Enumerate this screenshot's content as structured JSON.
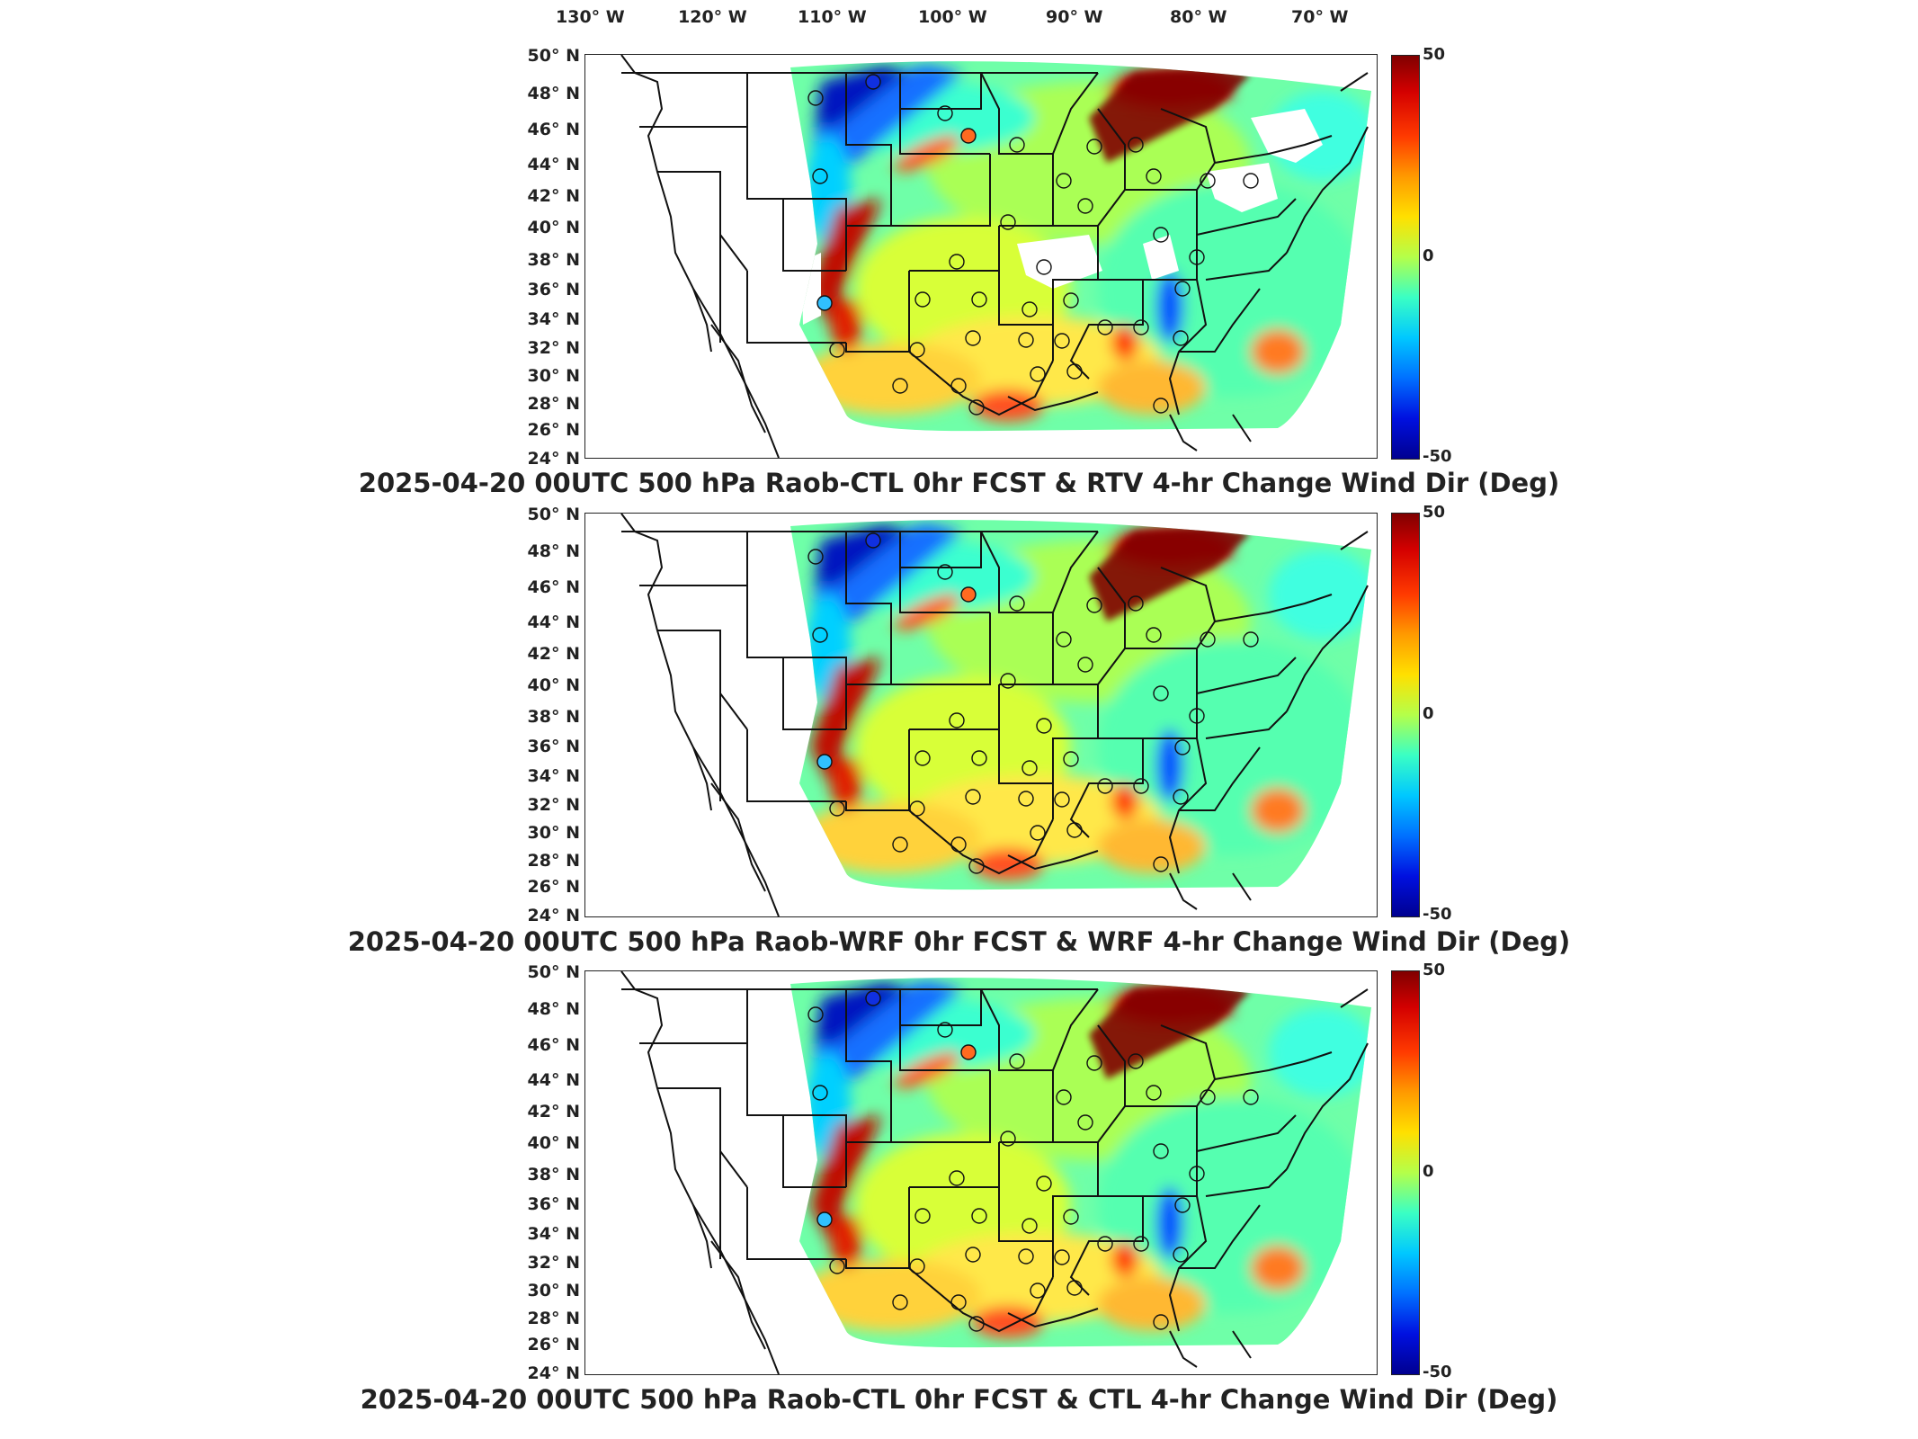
{
  "lon_labels": [
    "130° W",
    "120° W",
    "110° W",
    "100° W",
    "90° W",
    "80° W",
    "70° W"
  ],
  "lat_labels": [
    "50° N",
    "48° N",
    "46° N",
    "44° N",
    "42° N",
    "40° N",
    "38° N",
    "36° N",
    "34° N",
    "32° N",
    "30° N",
    "28° N",
    "26° N",
    "24° N"
  ],
  "colorbar": {
    "max_label": "50",
    "mid_label": "0",
    "min_label": "-50",
    "colors": [
      "#800000",
      "#ff3a00",
      "#ffe000",
      "#3affc4",
      "#0070ff",
      "#000090"
    ]
  },
  "panels": [
    {
      "title": "2025-04-20 00UTC 500 hPa Raob-CTL 0hr FCST & RTV 4-hr Change Wind Dir (Deg)"
    },
    {
      "title": "2025-04-20 00UTC 500 hPa Raob-WRF 0hr FCST & WRF 4-hr Change Wind Dir (Deg)"
    },
    {
      "title": "2025-04-20 00UTC 500 hPa Raob-CTL 0hr FCST & CTL 4-hr Change Wind Dir (Deg)"
    }
  ]
}
